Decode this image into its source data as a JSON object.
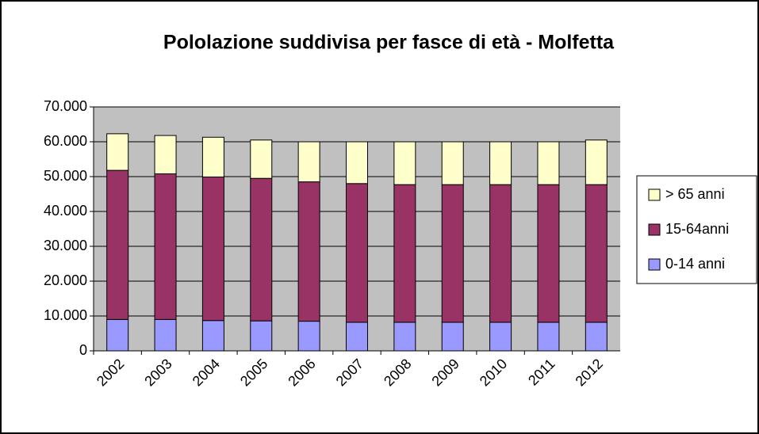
{
  "chart_data": {
    "type": "stacked_bar",
    "title": "Pololazione suddivisa per fasce di età - Molfetta",
    "categories": [
      "2002",
      "2003",
      "2004",
      "2005",
      "2006",
      "2007",
      "2008",
      "2009",
      "2010",
      "2011",
      "2012"
    ],
    "series": [
      {
        "name": "0-14 anni",
        "color": "#9999ff",
        "values": [
          9000,
          9000,
          8700,
          8600,
          8500,
          8200,
          8200,
          8200,
          8200,
          8200,
          8200
        ]
      },
      {
        "name": "15-64anni",
        "color": "#993366",
        "values": [
          42800,
          41800,
          41200,
          40900,
          40000,
          39800,
          39500,
          39500,
          39500,
          39500,
          39500
        ]
      },
      {
        "name": "> 65 anni",
        "color": "#ffffcc",
        "values": [
          10500,
          11000,
          11400,
          11000,
          11500,
          12000,
          12300,
          12300,
          12300,
          12300,
          12800
        ]
      }
    ],
    "ylim": [
      0,
      70000
    ],
    "yticks": [
      0,
      {
        "value": 10000,
        "label": "10.000"
      },
      {
        "value": 20000,
        "label": "20.000"
      },
      {
        "value": 30000,
        "label": "30.000"
      },
      {
        "value": 40000,
        "label": "40.000"
      },
      {
        "value": 50000,
        "label": "50.000"
      },
      {
        "value": 60000,
        "label": "60.000"
      },
      {
        "value": 70000,
        "label": "70.000"
      }
    ],
    "grid": true,
    "legend": "right",
    "plot_background": "#c0c0c0"
  }
}
